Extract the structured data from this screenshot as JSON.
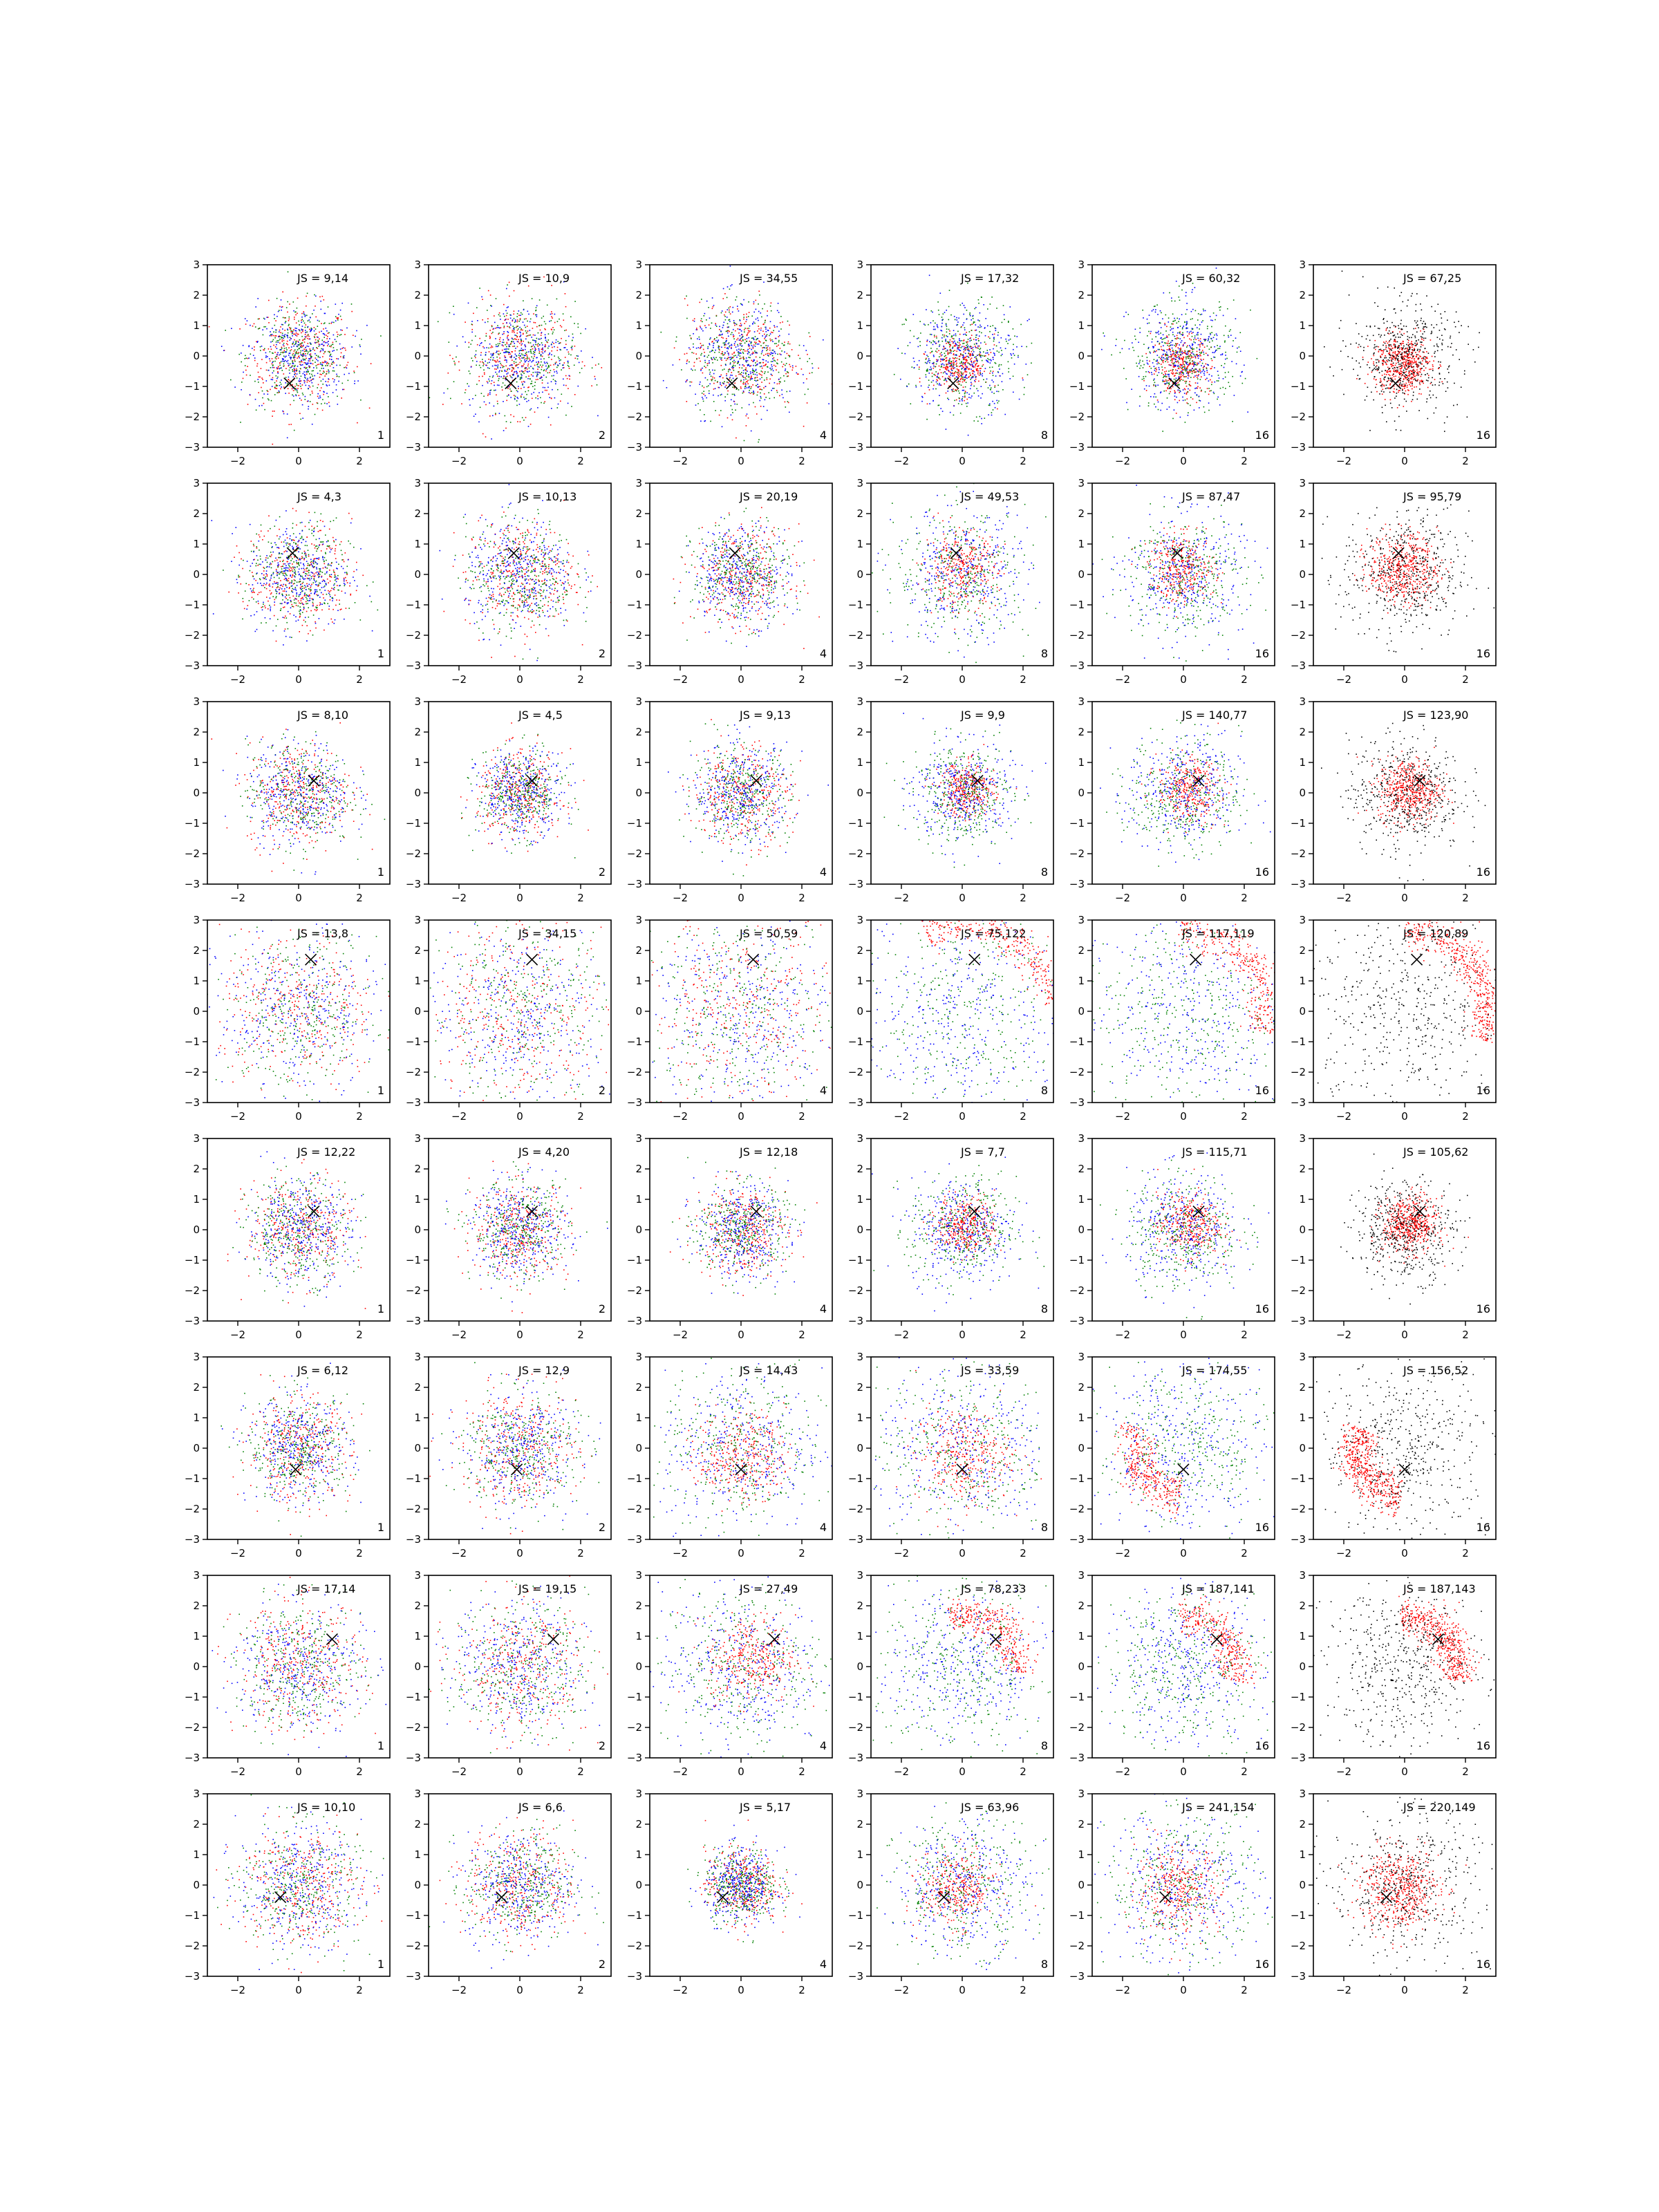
{
  "figure": {
    "rows": 8,
    "cols": 6,
    "tick_labels": {
      "x": [
        "−2",
        "0",
        "2"
      ],
      "y": [
        "−3",
        "−2",
        "−1",
        "0",
        "1",
        "2",
        "3"
      ]
    },
    "colors": {
      "red": "#ff0000",
      "green": "#008000",
      "blue": "#0000ff",
      "black": "#000000",
      "marker": "#000000"
    }
  },
  "chart_data": {
    "type": "scatter",
    "xlim": [
      -3,
      3
    ],
    "ylim": [
      -3,
      3
    ],
    "xticks": [
      -2,
      0,
      2
    ],
    "yticks": [
      -3,
      -2,
      -1,
      0,
      1,
      2,
      3
    ],
    "grid": false,
    "panels": [
      {
        "row": 1,
        "col": 1,
        "js_label": "JS = 9,14",
        "corner_label": "1",
        "marker_x": -0.3,
        "marker_y": -0.9,
        "spread": 0.85,
        "colors": [
          "red",
          "green",
          "blue"
        ],
        "mode": "mix"
      },
      {
        "row": 1,
        "col": 2,
        "js_label": "JS = 10,9",
        "corner_label": "2",
        "marker_x": -0.3,
        "marker_y": -0.9,
        "spread": 0.9,
        "colors": [
          "red",
          "green",
          "blue"
        ],
        "mode": "mix"
      },
      {
        "row": 1,
        "col": 3,
        "js_label": "JS = 34,55",
        "corner_label": "4",
        "marker_x": -0.3,
        "marker_y": -0.9,
        "spread": 0.9,
        "colors": [
          "red",
          "green",
          "blue"
        ],
        "mode": "mix"
      },
      {
        "row": 1,
        "col": 4,
        "js_label": "JS = 17,32",
        "corner_label": "8",
        "marker_x": -0.3,
        "marker_y": -0.9,
        "spread": 0.8,
        "colors": [
          "red",
          "green",
          "blue"
        ],
        "mode": "core"
      },
      {
        "row": 1,
        "col": 5,
        "js_label": "JS = 60,32",
        "corner_label": "16",
        "marker_x": -0.3,
        "marker_y": -0.9,
        "spread": 0.8,
        "colors": [
          "red",
          "green",
          "blue"
        ],
        "mode": "core"
      },
      {
        "row": 1,
        "col": 6,
        "js_label": "JS = 67,25",
        "corner_label": "16",
        "marker_x": -0.3,
        "marker_y": -0.9,
        "spread": 0.8,
        "colors": [
          "red",
          "black"
        ],
        "mode": "core"
      },
      {
        "row": 2,
        "col": 1,
        "js_label": "JS = 4,3",
        "corner_label": "1",
        "marker_x": -0.2,
        "marker_y": 0.7,
        "spread": 0.85,
        "colors": [
          "red",
          "green",
          "blue"
        ],
        "mode": "mix"
      },
      {
        "row": 2,
        "col": 2,
        "js_label": "JS = 10,13",
        "corner_label": "2",
        "marker_x": -0.2,
        "marker_y": 0.7,
        "spread": 0.9,
        "colors": [
          "red",
          "green",
          "blue"
        ],
        "mode": "mix"
      },
      {
        "row": 2,
        "col": 3,
        "js_label": "JS = 20,19",
        "corner_label": "4",
        "marker_x": -0.2,
        "marker_y": 0.7,
        "spread": 0.8,
        "colors": [
          "red",
          "green",
          "blue"
        ],
        "mode": "mix"
      },
      {
        "row": 2,
        "col": 4,
        "js_label": "JS = 49,53",
        "corner_label": "8",
        "marker_x": -0.2,
        "marker_y": 0.7,
        "spread": 1.0,
        "colors": [
          "red",
          "green",
          "blue"
        ],
        "mode": "core"
      },
      {
        "row": 2,
        "col": 5,
        "js_label": "JS = 87,47",
        "corner_label": "16",
        "marker_x": -0.2,
        "marker_y": 0.7,
        "spread": 0.9,
        "colors": [
          "red",
          "green",
          "blue"
        ],
        "mode": "core"
      },
      {
        "row": 2,
        "col": 6,
        "js_label": "JS = 95,79",
        "corner_label": "16",
        "marker_x": -0.2,
        "marker_y": 0.7,
        "spread": 0.95,
        "colors": [
          "red",
          "black"
        ],
        "mode": "core"
      },
      {
        "row": 3,
        "col": 1,
        "js_label": "JS = 8,10",
        "corner_label": "1",
        "marker_x": 0.5,
        "marker_y": 0.4,
        "spread": 0.85,
        "colors": [
          "red",
          "green",
          "blue"
        ],
        "mode": "mix"
      },
      {
        "row": 3,
        "col": 2,
        "js_label": "JS = 4,5",
        "corner_label": "2",
        "marker_x": 0.4,
        "marker_y": 0.4,
        "spread": 0.7,
        "colors": [
          "red",
          "green",
          "blue"
        ],
        "mode": "mix"
      },
      {
        "row": 3,
        "col": 3,
        "js_label": "JS = 9,13",
        "corner_label": "4",
        "marker_x": 0.5,
        "marker_y": 0.4,
        "spread": 0.8,
        "colors": [
          "red",
          "green",
          "blue"
        ],
        "mode": "mix"
      },
      {
        "row": 3,
        "col": 4,
        "js_label": "JS = 9,9",
        "corner_label": "8",
        "marker_x": 0.5,
        "marker_y": 0.4,
        "spread": 0.75,
        "colors": [
          "red",
          "green",
          "blue"
        ],
        "mode": "core"
      },
      {
        "row": 3,
        "col": 5,
        "js_label": "JS = 140,77",
        "corner_label": "16",
        "marker_x": 0.5,
        "marker_y": 0.4,
        "spread": 0.85,
        "colors": [
          "red",
          "green",
          "blue"
        ],
        "mode": "core"
      },
      {
        "row": 3,
        "col": 6,
        "js_label": "JS = 123,90",
        "corner_label": "16",
        "marker_x": 0.5,
        "marker_y": 0.4,
        "spread": 0.85,
        "colors": [
          "red",
          "black"
        ],
        "mode": "core"
      },
      {
        "row": 4,
        "col": 1,
        "js_label": "JS = 13,8",
        "corner_label": "1",
        "marker_x": 0.4,
        "marker_y": 1.7,
        "spread": 1.3,
        "colors": [
          "red",
          "green",
          "blue"
        ],
        "mode": "wide"
      },
      {
        "row": 4,
        "col": 2,
        "js_label": "JS = 34,15",
        "corner_label": "2",
        "marker_x": 0.4,
        "marker_y": 1.7,
        "spread": 1.5,
        "colors": [
          "red",
          "green",
          "blue"
        ],
        "mode": "wide"
      },
      {
        "row": 4,
        "col": 3,
        "js_label": "JS = 50,59",
        "corner_label": "4",
        "marker_x": 0.4,
        "marker_y": 1.7,
        "spread": 1.6,
        "colors": [
          "red",
          "green",
          "blue"
        ],
        "mode": "wide"
      },
      {
        "row": 4,
        "col": 4,
        "js_label": "JS = 75,122",
        "corner_label": "8",
        "marker_x": 0.4,
        "marker_y": 1.7,
        "spread": 1.7,
        "colors": [
          "red",
          "green",
          "blue"
        ],
        "mode": "arc",
        "arc_angle": 60,
        "arc_radius": 2.9
      },
      {
        "row": 4,
        "col": 5,
        "js_label": "JS = 117,119",
        "corner_label": "16",
        "marker_x": 0.4,
        "marker_y": 1.7,
        "spread": 1.7,
        "colors": [
          "red",
          "green",
          "blue"
        ],
        "mode": "arc",
        "arc_angle": 40,
        "arc_radius": 2.7
      },
      {
        "row": 4,
        "col": 6,
        "js_label": "JS = 120,89",
        "corner_label": "16",
        "marker_x": 0.4,
        "marker_y": 1.7,
        "spread": 1.7,
        "colors": [
          "red",
          "black"
        ],
        "mode": "arc",
        "arc_angle": 35,
        "arc_radius": 2.7
      },
      {
        "row": 5,
        "col": 1,
        "js_label": "JS = 12,22",
        "corner_label": "1",
        "marker_x": 0.5,
        "marker_y": 0.6,
        "spread": 0.85,
        "colors": [
          "red",
          "green",
          "blue"
        ],
        "mode": "mix"
      },
      {
        "row": 5,
        "col": 2,
        "js_label": "JS = 4,20",
        "corner_label": "2",
        "marker_x": 0.4,
        "marker_y": 0.6,
        "spread": 0.8,
        "colors": [
          "red",
          "green",
          "blue"
        ],
        "mode": "mix"
      },
      {
        "row": 5,
        "col": 3,
        "js_label": "JS = 12,18",
        "corner_label": "4",
        "marker_x": 0.5,
        "marker_y": 0.6,
        "spread": 0.75,
        "colors": [
          "red",
          "green",
          "blue"
        ],
        "mode": "mix"
      },
      {
        "row": 5,
        "col": 4,
        "js_label": "JS = 7,7",
        "corner_label": "8",
        "marker_x": 0.4,
        "marker_y": 0.6,
        "spread": 0.8,
        "colors": [
          "red",
          "green",
          "blue"
        ],
        "mode": "core"
      },
      {
        "row": 5,
        "col": 5,
        "js_label": "JS = 115,71",
        "corner_label": "16",
        "marker_x": 0.5,
        "marker_y": 0.6,
        "spread": 0.85,
        "colors": [
          "red",
          "green",
          "blue"
        ],
        "mode": "core"
      },
      {
        "row": 5,
        "col": 6,
        "js_label": "JS = 105,62",
        "corner_label": "16",
        "marker_x": 0.5,
        "marker_y": 0.6,
        "spread": 0.75,
        "colors": [
          "red",
          "black"
        ],
        "mode": "core"
      },
      {
        "row": 6,
        "col": 1,
        "js_label": "JS = 6,12",
        "corner_label": "1",
        "marker_x": -0.1,
        "marker_y": -0.7,
        "spread": 0.85,
        "colors": [
          "red",
          "green",
          "blue"
        ],
        "mode": "mix"
      },
      {
        "row": 6,
        "col": 2,
        "js_label": "JS = 12,9",
        "corner_label": "2",
        "marker_x": -0.1,
        "marker_y": -0.7,
        "spread": 0.95,
        "colors": [
          "red",
          "green",
          "blue"
        ],
        "mode": "mix"
      },
      {
        "row": 6,
        "col": 3,
        "js_label": "JS = 14,43",
        "corner_label": "4",
        "marker_x": 0.0,
        "marker_y": -0.7,
        "spread": 1.2,
        "colors": [
          "red",
          "green",
          "blue"
        ],
        "mode": "core"
      },
      {
        "row": 6,
        "col": 4,
        "js_label": "JS = 33,59",
        "corner_label": "8",
        "marker_x": 0.0,
        "marker_y": -0.7,
        "spread": 1.3,
        "colors": [
          "red",
          "green",
          "blue"
        ],
        "mode": "core"
      },
      {
        "row": 6,
        "col": 5,
        "js_label": "JS = 174,55",
        "corner_label": "16",
        "marker_x": 0.0,
        "marker_y": -0.7,
        "spread": 1.4,
        "colors": [
          "red",
          "green",
          "blue"
        ],
        "mode": "arc",
        "arc_angle": 210,
        "arc_radius": 1.6
      },
      {
        "row": 6,
        "col": 6,
        "js_label": "JS = 156,52",
        "corner_label": "16",
        "marker_x": 0.0,
        "marker_y": -0.7,
        "spread": 1.4,
        "colors": [
          "red",
          "black"
        ],
        "mode": "arc",
        "arc_angle": 210,
        "arc_radius": 1.6
      },
      {
        "row": 7,
        "col": 1,
        "js_label": "JS = 17,14",
        "corner_label": "1",
        "marker_x": 1.1,
        "marker_y": 0.9,
        "spread": 1.05,
        "colors": [
          "red",
          "green",
          "blue"
        ],
        "mode": "mix"
      },
      {
        "row": 7,
        "col": 2,
        "js_label": "JS = 19,15",
        "corner_label": "2",
        "marker_x": 1.1,
        "marker_y": 0.9,
        "spread": 1.1,
        "colors": [
          "red",
          "green",
          "blue"
        ],
        "mode": "mix"
      },
      {
        "row": 7,
        "col": 3,
        "js_label": "JS = 27,49",
        "corner_label": "4",
        "marker_x": 1.1,
        "marker_y": 0.9,
        "spread": 1.2,
        "colors": [
          "red",
          "green",
          "blue"
        ],
        "mode": "core"
      },
      {
        "row": 7,
        "col": 4,
        "js_label": "JS = 78,233",
        "corner_label": "8",
        "marker_x": 1.1,
        "marker_y": 0.9,
        "spread": 1.4,
        "colors": [
          "red",
          "green",
          "blue"
        ],
        "mode": "arc",
        "arc_angle": 50,
        "arc_radius": 1.8
      },
      {
        "row": 7,
        "col": 5,
        "js_label": "JS = 187,141",
        "corner_label": "16",
        "marker_x": 1.1,
        "marker_y": 0.9,
        "spread": 1.3,
        "colors": [
          "red",
          "green",
          "blue"
        ],
        "mode": "arc",
        "arc_angle": 40,
        "arc_radius": 1.7
      },
      {
        "row": 7,
        "col": 6,
        "js_label": "JS = 187,143",
        "corner_label": "16",
        "marker_x": 1.1,
        "marker_y": 0.9,
        "spread": 1.3,
        "colors": [
          "red",
          "black"
        ],
        "mode": "arc",
        "arc_angle": 40,
        "arc_radius": 1.7
      },
      {
        "row": 8,
        "col": 1,
        "js_label": "JS = 10,10",
        "corner_label": "1",
        "marker_x": -0.6,
        "marker_y": -0.4,
        "spread": 1.0,
        "colors": [
          "red",
          "green",
          "blue"
        ],
        "mode": "mix"
      },
      {
        "row": 8,
        "col": 2,
        "js_label": "JS = 6,6",
        "corner_label": "2",
        "marker_x": -0.6,
        "marker_y": -0.4,
        "spread": 0.9,
        "colors": [
          "red",
          "green",
          "blue"
        ],
        "mode": "mix"
      },
      {
        "row": 8,
        "col": 3,
        "js_label": "JS = 5,17",
        "corner_label": "4",
        "marker_x": -0.6,
        "marker_y": -0.4,
        "spread": 0.6,
        "colors": [
          "red",
          "green",
          "blue"
        ],
        "mode": "mix"
      },
      {
        "row": 8,
        "col": 4,
        "js_label": "JS = 63,96",
        "corner_label": "8",
        "marker_x": -0.6,
        "marker_y": -0.4,
        "spread": 1.0,
        "colors": [
          "red",
          "green",
          "blue"
        ],
        "mode": "core"
      },
      {
        "row": 8,
        "col": 5,
        "js_label": "JS = 241,154",
        "corner_label": "16",
        "marker_x": -0.6,
        "marker_y": -0.4,
        "spread": 1.15,
        "colors": [
          "red",
          "green",
          "blue"
        ],
        "mode": "core"
      },
      {
        "row": 8,
        "col": 6,
        "js_label": "JS = 220,149",
        "corner_label": "16",
        "marker_x": -0.6,
        "marker_y": -0.4,
        "spread": 1.1,
        "colors": [
          "red",
          "black"
        ],
        "mode": "core"
      }
    ]
  }
}
